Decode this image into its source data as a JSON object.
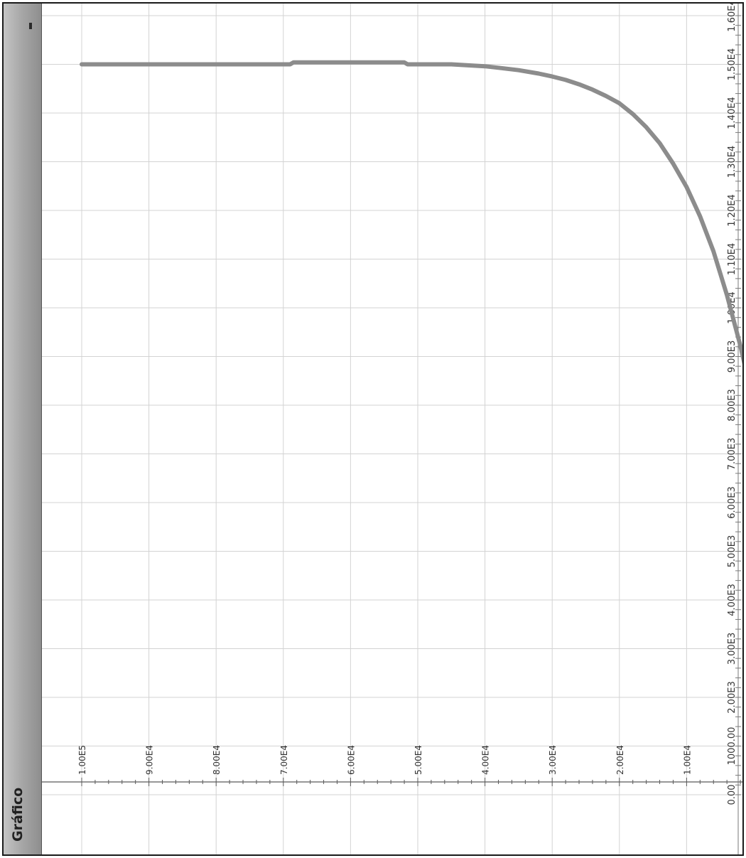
{
  "panel": {
    "title": "Gráfico",
    "minimize_icon": "minimize-icon"
  },
  "chart_data": {
    "type": "line",
    "orientation": "rotated-90",
    "title": "",
    "xlabel": "",
    "ylabel": "",
    "grid": true,
    "xlim": [
      0,
      100000
    ],
    "ylim": [
      0,
      16000
    ],
    "x_tick_values": [
      100000,
      90000,
      80000,
      70000,
      60000,
      50000,
      40000,
      30000,
      20000,
      10000,
      0
    ],
    "x_tick_labels": [
      "1.00E5",
      "9.00E4",
      "8.00E4",
      "7.00E4",
      "6.00E4",
      "5.00E4",
      "4.00E4",
      "3.00E4",
      "2.00E4",
      "1.00E4",
      "0.00"
    ],
    "y_tick_values": [
      0,
      1000,
      2000,
      3000,
      4000,
      5000,
      6000,
      7000,
      8000,
      9000,
      10000,
      11000,
      12000,
      13000,
      14000,
      15000,
      16000
    ],
    "y_tick_labels": [
      "0.00",
      "1000.00",
      "2.00E3",
      "3.00E3",
      "4.00E3",
      "5.00E3",
      "6.00E3",
      "7.00E3",
      "8.00E3",
      "9.00E3",
      "1.00E4",
      "1.10E4",
      "1.20E4",
      "1.30E4",
      "1.40E4",
      "1.50E4",
      "1.60E4"
    ],
    "series": [
      {
        "color": "#8c8c8c",
        "x": [
          100000,
          90000,
          80000,
          69000,
          68500,
          60000,
          52000,
          51500,
          45000,
          40000,
          38000,
          35000,
          32000,
          30000,
          28000,
          26000,
          24000,
          22000,
          20000,
          18000,
          16000,
          14000,
          12000,
          10000,
          8000,
          6000,
          4000,
          2000,
          0
        ],
        "y": [
          15000,
          15000,
          15000,
          15000,
          15040,
          15040,
          15040,
          15000,
          15000,
          14960,
          14930,
          14880,
          14810,
          14750,
          14680,
          14590,
          14480,
          14350,
          14200,
          13980,
          13710,
          13380,
          12960,
          12480,
          11880,
          11160,
          10260,
          9220,
          8000
        ]
      }
    ]
  }
}
